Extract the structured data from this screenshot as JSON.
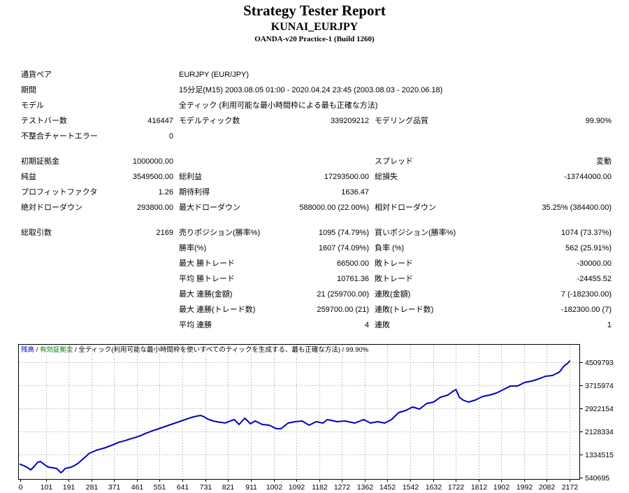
{
  "header": {
    "title": "Strategy Tester Report",
    "symbol": "KUNAI_EURJPY",
    "server": "OANDA-v20 Practice-1 (Build 1260)"
  },
  "report": {
    "sections": [
      {
        "rows": [
          [
            "通貨ペア",
            "",
            "EURJPY (EUR/JPY)",
            "",
            "",
            ""
          ],
          [
            "期間",
            "",
            "15分足(M15) 2003.08.05 01:00 - 2020.04.24 23:45 (2003.08.03 - 2020.06.18)",
            "",
            "",
            ""
          ],
          [
            "モデル",
            "",
            "全ティック (利用可能な最小時間枠による最も正確な方法)",
            "",
            "",
            ""
          ],
          [
            "テストバー数",
            "416447",
            "モデルティック数",
            "339209212",
            "モデリング品質",
            "99.90%"
          ],
          [
            "不整合チャートエラー",
            "0",
            "",
            "",
            "",
            ""
          ]
        ]
      },
      {
        "rows": [
          [
            "初期証拠金",
            "1000000.00",
            "",
            "",
            "スプレッド",
            "変動"
          ],
          [
            "純益",
            "3549500.00",
            "総利益",
            "17293500.00",
            "総損失",
            "-13744000.00"
          ],
          [
            "プロフィットファクタ",
            "1.26",
            "期待利得",
            "1636.47",
            "",
            ""
          ],
          [
            "絶対ドローダウン",
            "293800.00",
            "最大ドローダウン",
            "588000.00 (22.00%)",
            "相対ドローダウン",
            "35.25% (384400.00)"
          ]
        ]
      },
      {
        "rows": [
          [
            "総取引数",
            "2169",
            "売りポジション(勝率%)",
            "1095 (74.79%)",
            "買いポジション(勝率%)",
            "1074 (73.37%)"
          ],
          [
            "",
            "",
            "勝率(%)",
            "1607 (74.09%)",
            "負率 (%)",
            "562 (25.91%)"
          ],
          [
            "",
            "",
            "最大 勝トレード",
            "66500.00",
            "敗トレード",
            "-30000.00"
          ],
          [
            "",
            "",
            "平均 勝トレード",
            "10761.36",
            "敗トレード",
            "-24455.52"
          ],
          [
            "",
            "",
            "最大 連勝(金額)",
            "21 (259700.00)",
            "連敗(金額)",
            "7 (-182300.00)"
          ],
          [
            "",
            "",
            "最大 連勝(トレード数)",
            "259700.00 (21)",
            "連敗(トレード数)",
            "-182300.00 (7)"
          ],
          [
            "",
            "",
            "平均 連勝",
            "4",
            "連敗",
            "1"
          ]
        ]
      }
    ]
  },
  "chart_data": {
    "type": "line",
    "legend_parts": [
      {
        "text": "残高",
        "color": "#0000c8"
      },
      {
        "text": " / ",
        "color": "#000000"
      },
      {
        "text": "有効証拠金",
        "color": "#008000"
      },
      {
        "text": " / 全ティック(利用可能な最小時間枠を使いすべてのティックを生成する、最も正確な方法) / 99.90%",
        "color": "#000000"
      }
    ],
    "x_ticks": [
      0,
      101,
      191,
      281,
      371,
      461,
      551,
      641,
      731,
      821,
      911,
      1002,
      1092,
      1182,
      1272,
      1362,
      1452,
      1542,
      1632,
      1722,
      1812,
      1902,
      1992,
      2082,
      2172
    ],
    "y_ticks": [
      540695,
      1334515,
      2128334,
      2922154,
      3715974,
      4509793
    ],
    "x_range": [
      0,
      2172
    ],
    "y_range": [
      540695,
      4509793
    ],
    "grid": true,
    "colors": {
      "line": "#0000c0",
      "grid": "#c4c4c4",
      "border": "#000000"
    },
    "series": [
      {
        "name": "残高",
        "color": "#0000c0",
        "points": [
          [
            0,
            1000000
          ],
          [
            14,
            950000
          ],
          [
            30,
            880000
          ],
          [
            41,
            805000
          ],
          [
            55,
            926000
          ],
          [
            69,
            1070000
          ],
          [
            80,
            1094000
          ],
          [
            91,
            1022000
          ],
          [
            102,
            950000
          ],
          [
            111,
            902000
          ],
          [
            130,
            877000
          ],
          [
            144,
            853000
          ],
          [
            152,
            790000
          ],
          [
            160,
            708000
          ],
          [
            168,
            760000
          ],
          [
            177,
            853000
          ],
          [
            200,
            900000
          ],
          [
            215,
            960000
          ],
          [
            228,
            1030000
          ],
          [
            250,
            1200000
          ],
          [
            262,
            1290000
          ],
          [
            270,
            1360000
          ],
          [
            285,
            1420000
          ],
          [
            300,
            1480000
          ],
          [
            315,
            1520000
          ],
          [
            330,
            1550000
          ],
          [
            345,
            1600000
          ],
          [
            360,
            1650000
          ],
          [
            375,
            1700000
          ],
          [
            390,
            1760000
          ],
          [
            405,
            1790000
          ],
          [
            420,
            1830000
          ],
          [
            435,
            1870000
          ],
          [
            450,
            1910000
          ],
          [
            465,
            1950000
          ],
          [
            480,
            2000000
          ],
          [
            495,
            2060000
          ],
          [
            510,
            2110000
          ],
          [
            525,
            2160000
          ],
          [
            540,
            2200000
          ],
          [
            560,
            2260000
          ],
          [
            580,
            2320000
          ],
          [
            600,
            2380000
          ],
          [
            620,
            2440000
          ],
          [
            640,
            2500000
          ],
          [
            660,
            2560000
          ],
          [
            680,
            2620000
          ],
          [
            700,
            2660000
          ],
          [
            713,
            2680000
          ],
          [
            725,
            2640000
          ],
          [
            740,
            2560000
          ],
          [
            763,
            2490000
          ],
          [
            785,
            2450000
          ],
          [
            810,
            2420000
          ],
          [
            846,
            2540000
          ],
          [
            865,
            2370000
          ],
          [
            888,
            2585000
          ],
          [
            910,
            2393000
          ],
          [
            929,
            2489000
          ],
          [
            957,
            2369000
          ],
          [
            984,
            2345000
          ],
          [
            1012,
            2224000
          ],
          [
            1031,
            2224000
          ],
          [
            1059,
            2417000
          ],
          [
            1087,
            2465000
          ],
          [
            1114,
            2489000
          ],
          [
            1142,
            2345000
          ],
          [
            1170,
            2465000
          ],
          [
            1197,
            2417000
          ],
          [
            1214,
            2537000
          ],
          [
            1253,
            2465000
          ],
          [
            1283,
            2489000
          ],
          [
            1322,
            2417000
          ],
          [
            1358,
            2537000
          ],
          [
            1385,
            2417000
          ],
          [
            1413,
            2465000
          ],
          [
            1441,
            2417000
          ],
          [
            1468,
            2537000
          ],
          [
            1496,
            2778000
          ],
          [
            1524,
            2850000
          ],
          [
            1551,
            2970000
          ],
          [
            1579,
            2898000
          ],
          [
            1607,
            3090000
          ],
          [
            1634,
            3138000
          ],
          [
            1662,
            3307000
          ],
          [
            1690,
            3379000
          ],
          [
            1709,
            3499000
          ],
          [
            1723,
            3571000
          ],
          [
            1736,
            3307000
          ],
          [
            1750,
            3210000
          ],
          [
            1772,
            3138000
          ],
          [
            1800,
            3210000
          ],
          [
            1828,
            3331000
          ],
          [
            1855,
            3379000
          ],
          [
            1883,
            3451000
          ],
          [
            1911,
            3571000
          ],
          [
            1938,
            3691000
          ],
          [
            1966,
            3691000
          ],
          [
            1994,
            3812000
          ],
          [
            2021,
            3860000
          ],
          [
            2049,
            3932000
          ],
          [
            2077,
            4028000
          ],
          [
            2104,
            4052000
          ],
          [
            2132,
            4172000
          ],
          [
            2150,
            4380000
          ],
          [
            2165,
            4480000
          ],
          [
            2172,
            4549500
          ]
        ]
      }
    ]
  }
}
